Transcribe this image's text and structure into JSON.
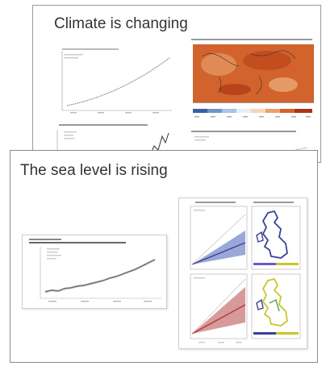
{
  "slides": [
    {
      "title": "Climate is changing"
    },
    {
      "title": "The sea level is rising"
    }
  ],
  "colors": {
    "slide_border": "#9a9a9a",
    "map_warm": "#d2632d",
    "map_cool": "#4a79b4",
    "uk_blue": "#3b3f9a",
    "uk_yellow": "#c8c62a",
    "shade_blue": "#9aa8d8",
    "shade_red": "#d79a9a"
  },
  "icons": {}
}
